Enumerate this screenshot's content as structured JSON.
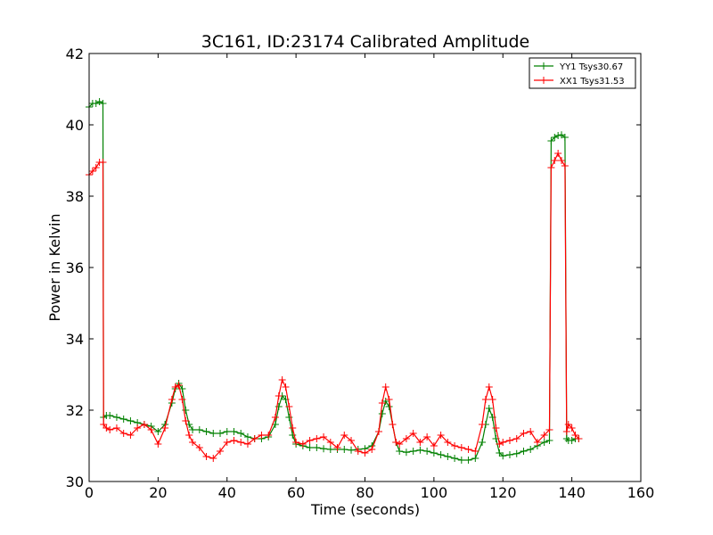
{
  "chart_data": {
    "type": "line",
    "title": "3C161, ID:23174 Calibrated Amplitude",
    "xlabel": "Time (seconds)",
    "ylabel": "Power in Kelvin",
    "xlim": [
      0,
      160
    ],
    "ylim": [
      30,
      42
    ],
    "xticks": [
      "0",
      "20",
      "40",
      "60",
      "80",
      "100",
      "120",
      "140",
      "160"
    ],
    "yticks": [
      "30",
      "32",
      "34",
      "36",
      "38",
      "40",
      "42"
    ],
    "grid": false,
    "legend_position": "top-right",
    "marker": "+",
    "series": [
      {
        "name": "YY1 Tsys30.67",
        "color": "#008000",
        "x": [
          0,
          1,
          2,
          3,
          4,
          4.2,
          5,
          6,
          8,
          10,
          12,
          14,
          16,
          18,
          20,
          22,
          24,
          25,
          26,
          27,
          28,
          29,
          30,
          32,
          34,
          36,
          38,
          40,
          42,
          44,
          46,
          48,
          50,
          52,
          54,
          55,
          56,
          57,
          58,
          59,
          60,
          62,
          64,
          66,
          68,
          70,
          72,
          74,
          76,
          78,
          80,
          82,
          84,
          85,
          86,
          87,
          88,
          89,
          90,
          92,
          94,
          96,
          98,
          100,
          102,
          104,
          106,
          108,
          110,
          112,
          114,
          115,
          116,
          117,
          118,
          119,
          120,
          122,
          124,
          126,
          128,
          130,
          132,
          133.5,
          134,
          135,
          136,
          137,
          138,
          138.5,
          139,
          140,
          141,
          142
        ],
        "values": [
          40.5,
          40.6,
          40.6,
          40.65,
          40.6,
          31.8,
          31.85,
          31.85,
          31.8,
          31.75,
          31.7,
          31.65,
          31.6,
          31.55,
          31.4,
          31.6,
          32.2,
          32.6,
          32.75,
          32.6,
          32.0,
          31.6,
          31.45,
          31.45,
          31.4,
          31.35,
          31.35,
          31.4,
          31.4,
          31.35,
          31.25,
          31.2,
          31.2,
          31.25,
          31.6,
          32.1,
          32.4,
          32.3,
          31.8,
          31.3,
          31.05,
          31.0,
          30.95,
          30.95,
          30.92,
          30.9,
          30.9,
          30.9,
          30.88,
          30.9,
          30.92,
          31.0,
          31.4,
          31.9,
          32.25,
          32.1,
          31.6,
          31.1,
          30.85,
          30.82,
          30.85,
          30.88,
          30.85,
          30.8,
          30.75,
          30.7,
          30.65,
          30.6,
          30.6,
          30.65,
          31.1,
          31.6,
          32.05,
          31.8,
          31.2,
          30.8,
          30.72,
          30.75,
          30.78,
          30.85,
          30.9,
          31.0,
          31.1,
          31.15,
          39.55,
          39.65,
          39.7,
          39.72,
          39.65,
          31.2,
          31.15,
          31.15,
          31.2,
          31.2
        ]
      },
      {
        "name": "XX1 Tsys31.53",
        "color": "#ff0000",
        "x": [
          0,
          1,
          2,
          3,
          4,
          4.2,
          5,
          6,
          8,
          10,
          12,
          14,
          16,
          18,
          20,
          22,
          24,
          25,
          26,
          27,
          28,
          29,
          30,
          32,
          34,
          36,
          38,
          40,
          42,
          44,
          46,
          48,
          50,
          52,
          54,
          55,
          56,
          57,
          58,
          59,
          60,
          62,
          64,
          66,
          68,
          70,
          72,
          74,
          76,
          78,
          80,
          82,
          84,
          85,
          86,
          87,
          88,
          89,
          90,
          92,
          94,
          96,
          98,
          100,
          102,
          104,
          106,
          108,
          110,
          112,
          114,
          115,
          116,
          117,
          118,
          119,
          120,
          122,
          124,
          126,
          128,
          130,
          132,
          133.5,
          134,
          135,
          136,
          137,
          138,
          138.5,
          139,
          140,
          141,
          142
        ],
        "values": [
          38.6,
          38.7,
          38.8,
          38.95,
          38.95,
          31.6,
          31.5,
          31.45,
          31.5,
          31.35,
          31.3,
          31.5,
          31.6,
          31.45,
          31.05,
          31.5,
          32.3,
          32.65,
          32.7,
          32.3,
          31.7,
          31.3,
          31.1,
          30.95,
          30.7,
          30.65,
          30.85,
          31.1,
          31.15,
          31.1,
          31.05,
          31.2,
          31.3,
          31.3,
          31.8,
          32.4,
          32.85,
          32.65,
          32.1,
          31.5,
          31.1,
          31.05,
          31.15,
          31.2,
          31.25,
          31.1,
          30.95,
          31.3,
          31.15,
          30.85,
          30.8,
          30.9,
          31.4,
          32.2,
          32.65,
          32.3,
          31.6,
          31.1,
          31.05,
          31.2,
          31.35,
          31.1,
          31.25,
          31.0,
          31.3,
          31.1,
          31.0,
          30.95,
          30.9,
          30.85,
          31.6,
          32.3,
          32.65,
          32.3,
          31.5,
          31.05,
          31.1,
          31.15,
          31.2,
          31.35,
          31.4,
          31.1,
          31.3,
          31.45,
          38.8,
          39.0,
          39.2,
          39.0,
          38.85,
          31.4,
          31.6,
          31.5,
          31.3,
          31.2
        ]
      }
    ]
  }
}
